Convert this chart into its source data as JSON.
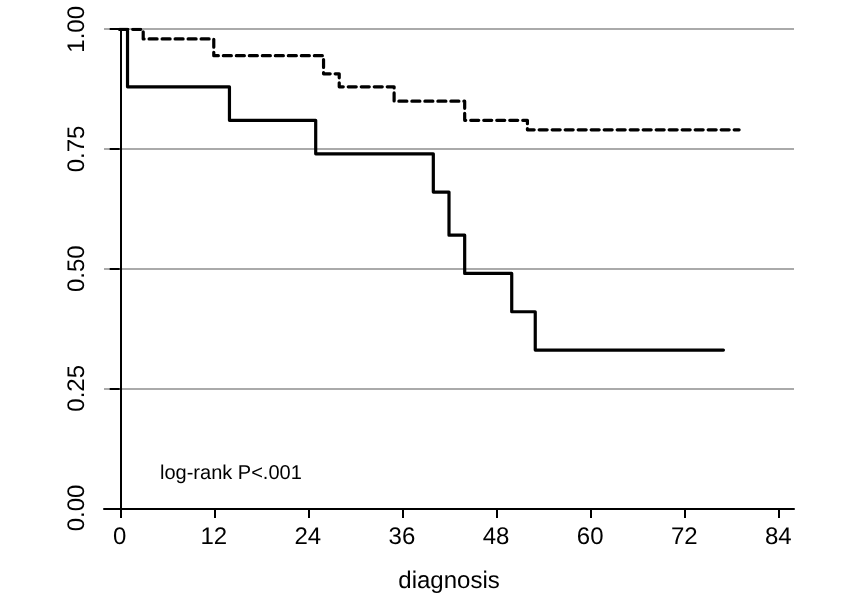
{
  "chart_data": {
    "type": "step",
    "xlabel": "diagnosis",
    "xlim": [
      -2,
      86
    ],
    "xticks": [
      0,
      12,
      24,
      36,
      48,
      60,
      72,
      84
    ],
    "ylim": [
      0,
      1
    ],
    "yticks": [
      {
        "value": 0,
        "label": "0.00"
      },
      {
        "value": 0.25,
        "label": "0.25"
      },
      {
        "value": 0.5,
        "label": "0.50"
      },
      {
        "value": 0.75,
        "label": "0.75"
      },
      {
        "value": 1,
        "label": "1.00"
      }
    ],
    "grid": "y",
    "marker": "none",
    "annotations": [
      "log-rank P<.001"
    ],
    "series": [
      {
        "color": "#000000",
        "line_style": "solid",
        "x": [
          0,
          1,
          14,
          25,
          40,
          42,
          44,
          50,
          53,
          77
        ],
        "values": [
          1,
          0.88,
          0.81,
          0.74,
          0.66,
          0.57,
          0.49,
          0.41,
          0.33,
          0.33
        ]
      },
      {
        "color": "#000000",
        "line_style": "dashed",
        "x": [
          0,
          3,
          12,
          26,
          28,
          35,
          44,
          52,
          79
        ],
        "values": [
          1,
          0.98,
          0.945,
          0.907,
          0.88,
          0.85,
          0.81,
          0.79,
          0.79
        ]
      }
    ]
  }
}
